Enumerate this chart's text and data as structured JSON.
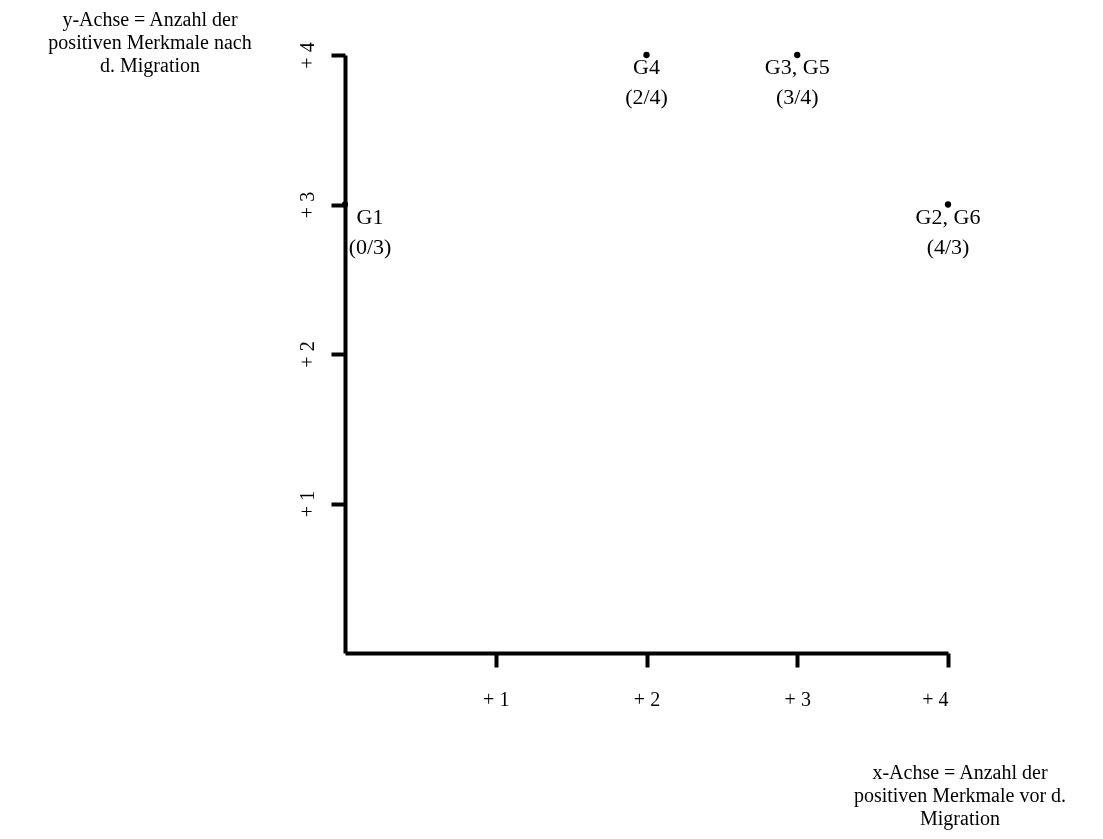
{
  "chart_data": {
    "type": "scatter",
    "x": [
      0,
      2,
      3,
      4
    ],
    "values": [
      3,
      4,
      4,
      3
    ],
    "marker": "circle",
    "xlabel": "x-Achse = Anzahl der\npositiven Merkmale vor d.\nMigration",
    "ylabel": "y-Achse = Anzahl der\npositiven Merkmale nach\nd. Migration",
    "annotations": [
      {
        "text": "G1\n(0/3)",
        "x": 0,
        "y": 3
      },
      {
        "text": "G4\n(2/4)",
        "x": 2,
        "y": 4
      },
      {
        "text": "G3, G5\n(3/4)",
        "x": 3,
        "y": 4
      },
      {
        "text": "G2, G6\n(4/3)",
        "x": 4,
        "y": 3
      }
    ],
    "xlim": [
      0,
      4
    ],
    "ylim": [
      0,
      4
    ],
    "xticks": [
      {
        "value": 1,
        "label": "+ 1"
      },
      {
        "value": 2,
        "label": "+ 2"
      },
      {
        "value": 3,
        "label": "+ 3"
      },
      {
        "value": 4,
        "label": "+ 4"
      }
    ],
    "yticks": [
      {
        "value": 1,
        "label": "+ 1"
      },
      {
        "value": 2,
        "label": "+ 2"
      },
      {
        "value": 3,
        "label": "+ 3"
      },
      {
        "value": 4,
        "label": "+ 4"
      }
    ],
    "grid": false
  }
}
